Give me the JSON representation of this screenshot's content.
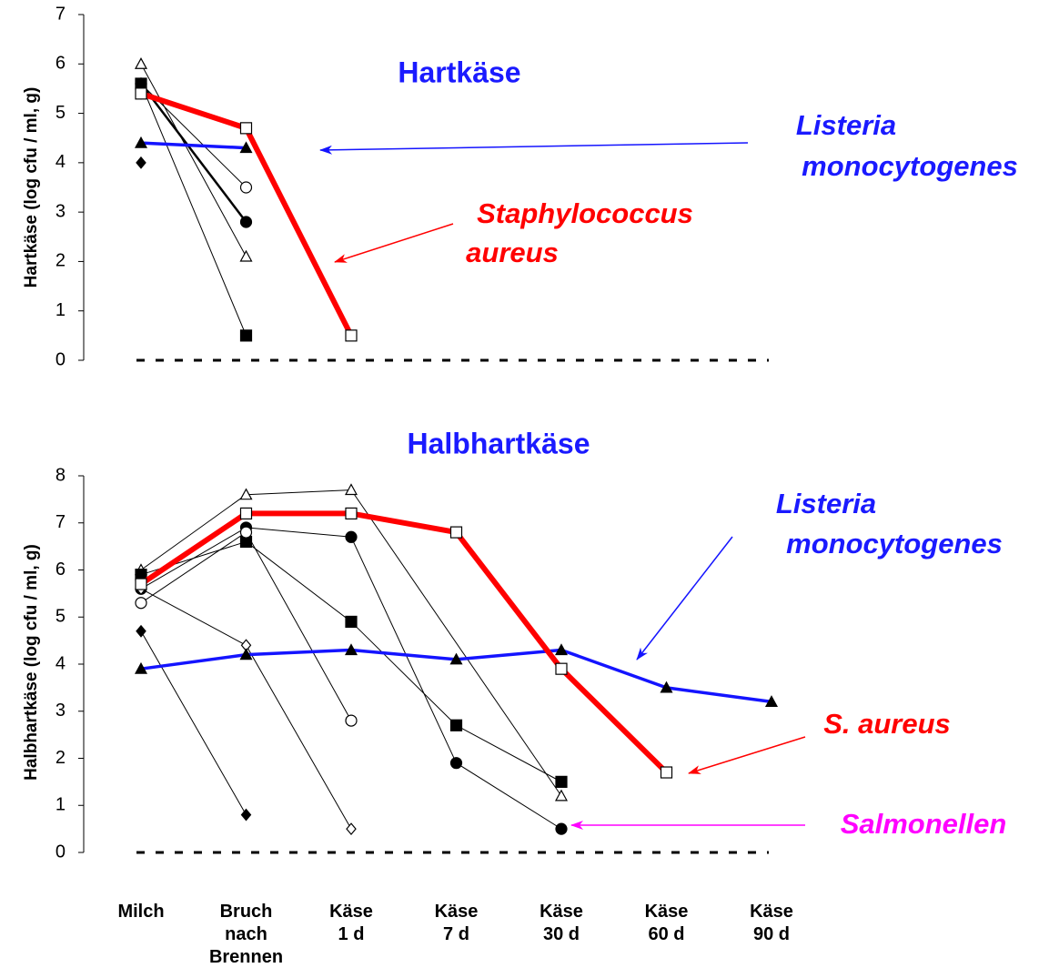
{
  "chart_data": [
    {
      "type": "line",
      "title": "Hartkäse",
      "title_color": "#1a1aff",
      "ylabel": "Hartkäse  (log cfu / ml, g)",
      "ylim": [
        0,
        7
      ],
      "yticks": [
        0,
        1,
        2,
        3,
        4,
        5,
        6,
        7
      ],
      "annotations": [
        {
          "text": [
            "Listeria",
            "monocytogenes"
          ],
          "color": "#1a1aff"
        },
        {
          "text": [
            "Staphylococcus",
            "aureus"
          ],
          "color": "#ff0000"
        }
      ],
      "series": [
        {
          "color": "#000000",
          "width": 1,
          "marker": "square-filled",
          "values": [
            5.6,
            0.5
          ]
        },
        {
          "color": "#000000",
          "width": 1,
          "marker": "triangle-open",
          "values": [
            6.0,
            2.1
          ]
        },
        {
          "color": "#000000",
          "width": 1,
          "marker": "circle-open",
          "values": [
            5.6,
            3.5
          ]
        },
        {
          "color": "#000000",
          "width": 2.5,
          "marker": "circle-filled",
          "values": [
            5.6,
            2.8
          ]
        },
        {
          "color": "#000000",
          "width": 1,
          "marker": "diamond-open",
          "values": [
            5.4
          ]
        },
        {
          "color": "#000000",
          "width": 1,
          "marker": "diamond-filled",
          "values": [
            4.0
          ]
        },
        {
          "color": "#1414ff",
          "width": 3.5,
          "marker": "triangle-filled",
          "values": [
            4.4,
            4.3
          ]
        },
        {
          "color": "#ff0000",
          "width": 6,
          "marker": "square-open",
          "values": [
            5.4,
            4.7,
            0.5
          ]
        }
      ]
    },
    {
      "type": "line",
      "title": "Halbhartkäse",
      "title_color": "#1a1aff",
      "ylabel": "Halbhartkäse (log cfu / ml, g)",
      "categories": [
        "Milch",
        "Bruch nach Brennen",
        "Käse 1 d",
        "Käse 7 d",
        "Käse 30 d",
        "Käse 60 d",
        "Käse 90 d"
      ],
      "ylim": [
        0,
        8
      ],
      "yticks": [
        0,
        1,
        2,
        3,
        4,
        5,
        6,
        7,
        8
      ],
      "annotations": [
        {
          "text": [
            "Listeria",
            "monocytogenes"
          ],
          "color": "#1a1aff"
        },
        {
          "text": [
            "S. aureus"
          ],
          "color": "#ff0000"
        },
        {
          "text": [
            "Salmonellen"
          ],
          "color": "#ff00ff"
        }
      ],
      "series": [
        {
          "color": "#000000",
          "width": 1,
          "marker": "triangle-open",
          "values": [
            6.0,
            7.6,
            7.7,
            null,
            1.2,
            null,
            null
          ]
        },
        {
          "color": "#000000",
          "width": 1,
          "marker": "circle-filled",
          "values": [
            5.6,
            6.9,
            6.7,
            1.9,
            0.5,
            null,
            null
          ]
        },
        {
          "color": "#000000",
          "width": 1,
          "marker": "square-filled",
          "values": [
            5.9,
            6.6,
            4.9,
            2.7,
            1.5,
            null,
            null
          ]
        },
        {
          "color": "#000000",
          "width": 1,
          "marker": "circle-open",
          "values": [
            5.3,
            6.8,
            2.8,
            null,
            null,
            null,
            null
          ]
        },
        {
          "color": "#000000",
          "width": 1,
          "marker": "diamond-open",
          "values": [
            5.6,
            4.4,
            0.5,
            null,
            null,
            null,
            null
          ]
        },
        {
          "color": "#000000",
          "width": 1,
          "marker": "diamond-filled",
          "values": [
            4.7,
            0.8,
            null,
            null,
            null,
            null,
            null
          ]
        },
        {
          "color": "#1414ff",
          "width": 3.5,
          "marker": "triangle-filled",
          "values": [
            3.9,
            4.2,
            4.3,
            4.1,
            4.3,
            3.5,
            3.2
          ]
        },
        {
          "color": "#ff0000",
          "width": 6,
          "marker": "square-open",
          "values": [
            5.7,
            7.2,
            7.2,
            6.8,
            3.9,
            1.7,
            null
          ]
        }
      ]
    }
  ]
}
